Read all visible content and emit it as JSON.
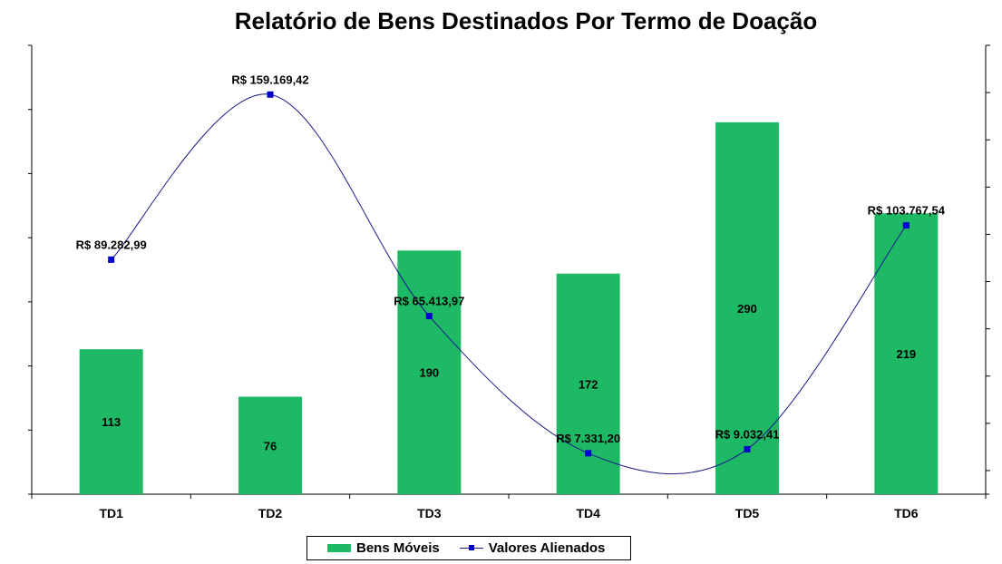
{
  "chart_data": {
    "type": "bar",
    "title": "Relatório de Bens Destinados Por Termo de Doação",
    "categories": [
      "TD1",
      "TD2",
      "TD3",
      "TD4",
      "TD5",
      "TD6"
    ],
    "grid": false,
    "legend_position": "bottom",
    "series": [
      {
        "name": "Bens Móveis",
        "type": "bar",
        "axis": "left",
        "values": [
          113,
          76,
          190,
          172,
          290,
          219
        ],
        "labels": [
          "113",
          "76",
          "190",
          "172",
          "290",
          "219"
        ],
        "color": "#1db964"
      },
      {
        "name": "Valores Alienados",
        "type": "line",
        "axis": "right",
        "smooth": true,
        "values": [
          89282.99,
          159169.42,
          65413.97,
          7331.2,
          9032.41,
          103767.54
        ],
        "labels": [
          "R$ 89.282,99",
          "R$ 159.169,42",
          "R$ 65.413,97",
          "R$ 7.331,20",
          "R$ 9.032,41",
          "R$ 103.767,54"
        ],
        "color": "#1a1a8c",
        "marker_color": "#0000cc"
      }
    ],
    "ylim_left": [
      0,
      350
    ],
    "ylim_right": [
      -10000,
      180000
    ]
  }
}
